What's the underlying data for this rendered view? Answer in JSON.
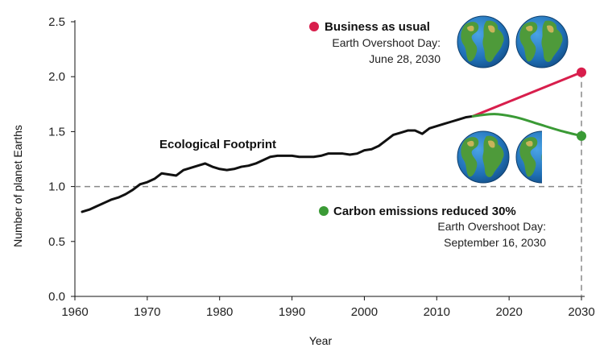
{
  "chart_data": {
    "type": "line",
    "title": "",
    "xlabel": "Year",
    "ylabel": "Number of planet Earths",
    "xlim": [
      1960,
      2030
    ],
    "ylim": [
      0.0,
      2.5
    ],
    "x_ticks": [
      1960,
      1970,
      1980,
      1990,
      2000,
      2010,
      2020,
      2030
    ],
    "y_ticks": [
      "0.0",
      "0.5",
      "1.0",
      "1.5",
      "2.0",
      "2.5"
    ],
    "reference_line": {
      "y": 1.0,
      "style": "dashed"
    },
    "series": [
      {
        "name": "Ecological Footprint",
        "label": "Ecological Footprint",
        "color": "#111111",
        "x": [
          1961,
          1962,
          1963,
          1964,
          1965,
          1966,
          1967,
          1968,
          1969,
          1970,
          1971,
          1972,
          1973,
          1974,
          1975,
          1976,
          1977,
          1978,
          1979,
          1980,
          1981,
          1982,
          1983,
          1984,
          1985,
          1986,
          1987,
          1988,
          1989,
          1990,
          1991,
          1992,
          1993,
          1994,
          1995,
          1996,
          1997,
          1998,
          1999,
          2000,
          2001,
          2002,
          2003,
          2004,
          2005,
          2006,
          2007,
          2008,
          2009,
          2010,
          2011,
          2012,
          2013,
          2014,
          2015
        ],
        "values": [
          0.77,
          0.79,
          0.82,
          0.85,
          0.88,
          0.9,
          0.93,
          0.97,
          1.02,
          1.04,
          1.07,
          1.12,
          1.11,
          1.1,
          1.15,
          1.17,
          1.19,
          1.21,
          1.18,
          1.16,
          1.15,
          1.16,
          1.18,
          1.19,
          1.21,
          1.24,
          1.27,
          1.28,
          1.28,
          1.28,
          1.27,
          1.27,
          1.27,
          1.28,
          1.3,
          1.3,
          1.3,
          1.29,
          1.3,
          1.33,
          1.34,
          1.37,
          1.42,
          1.47,
          1.49,
          1.51,
          1.51,
          1.48,
          1.53,
          1.55,
          1.57,
          1.59,
          1.61,
          1.63,
          1.64
        ]
      },
      {
        "name": "Business as usual",
        "color": "#d81e4c",
        "x": [
          2015,
          2030
        ],
        "values": [
          1.64,
          2.04
        ]
      },
      {
        "name": "Carbon emissions reduced 30%",
        "color": "#3a9a35",
        "x": [
          2015,
          2018,
          2021,
          2024,
          2027,
          2030
        ],
        "values": [
          1.64,
          1.66,
          1.63,
          1.57,
          1.51,
          1.46
        ]
      }
    ],
    "annotations": {
      "business_as_usual": {
        "title": "Business as usual",
        "line1": "Earth Overshoot Day:",
        "line2": "June 28, 2030",
        "earths": 2
      },
      "carbon_reduced": {
        "title": "Carbon emissions reduced 30%",
        "line1": "Earth Overshoot Day:",
        "line2": "September 16, 2030",
        "earths": 1.5
      }
    },
    "colors": {
      "footprint": "#111111",
      "business": "#d81e4c",
      "carbon": "#3a9a35",
      "reference": "#888888",
      "ocean": "#1f6fb5",
      "land": "#4e9a3a",
      "land_dry": "#c9b35a"
    }
  }
}
